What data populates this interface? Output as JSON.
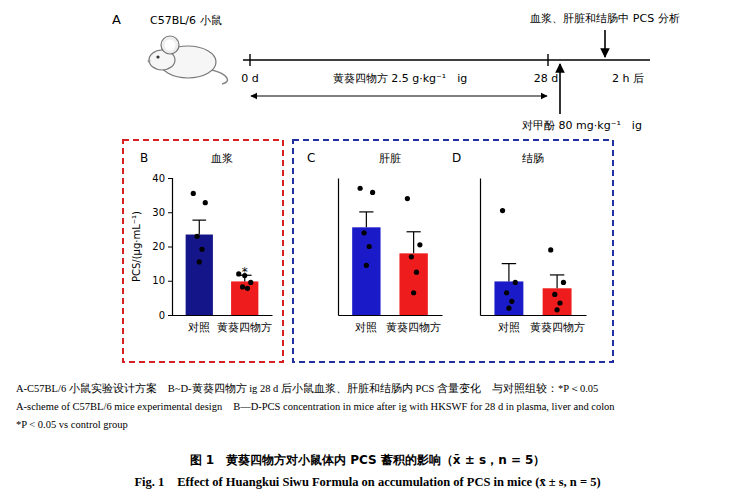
{
  "scheme": {
    "panel": "A",
    "subject": "C57BL/6 小鼠",
    "start": "0 d",
    "treatment": "黄葵四物方 2.5 g·kg⁻¹　ig",
    "end": "28 d",
    "after": "2 h 后",
    "analysis": "血浆、肝脏和结肠中 PCS 分析",
    "challenge": "对甲酚 80 mg·kg⁻¹　ig"
  },
  "chart_data": [
    {
      "type": "bar",
      "panel": "B",
      "title": "血浆",
      "y_label": "PCS/(μg·mL⁻¹)",
      "categories": [
        "对照",
        "黄葵四物方"
      ],
      "values": [
        23.5,
        9.8
      ],
      "errors": [
        4.2,
        1.8
      ],
      "points": [
        [
          35.5,
          32.8,
          23.0,
          19.2,
          15.5
        ],
        [
          12.0,
          9.5,
          8.2,
          7.8,
          11.5
        ]
      ],
      "colors": [
        "#15158a",
        "#ee1c1c"
      ],
      "ylim": [
        0,
        40
      ],
      "yticks": [
        0,
        10,
        20,
        30,
        40
      ],
      "annotations": [
        {
          "text": "*",
          "index": 1
        }
      ]
    },
    {
      "type": "bar",
      "panel": "C",
      "title": "肝脏",
      "categories": [
        "对照",
        "黄葵四物方"
      ],
      "values": [
        25.6,
        18.0
      ],
      "errors": [
        4.5,
        6.3
      ],
      "points": [
        [
          37.0,
          35.8,
          24.0,
          20.0,
          14.5
        ],
        [
          34.0,
          20.5,
          17.0,
          12.5,
          6.5
        ]
      ],
      "colors": [
        "#1a1ac8",
        "#ee1c1c"
      ],
      "ylim": [
        0,
        40
      ],
      "tick_labels": false
    },
    {
      "type": "bar",
      "panel": "D",
      "title": "结肠",
      "categories": [
        "对照",
        "黄葵四物方"
      ],
      "values": [
        9.8,
        7.8
      ],
      "errors": [
        5.2,
        3.9
      ],
      "points": [
        [
          30.5,
          9.5,
          6.5,
          4.0,
          2.0
        ],
        [
          19.0,
          9.5,
          6.0,
          3.5,
          1.5
        ]
      ],
      "colors": [
        "#1a1ac8",
        "#ee1c1c"
      ],
      "ylim": [
        0,
        40
      ],
      "tick_labels": false
    }
  ],
  "caption": {
    "legend_zh": "A-C57BL/6 小鼠实验设计方案　B~D-黄葵四物方 ig 28 d 后小鼠血浆、肝脏和结肠内 PCS 含量变化　与对照组较：*P＜0.05",
    "legend_en": "A-scheme of C57BL/6 mice experimental design　B—D-PCS concentration in mice after ig with HKSWF for 28 d in plasma, liver and colon",
    "legend_en_note": "*P < 0.05 vs control group",
    "title_zh": "图 1　黄葵四物方对小鼠体内 PCS 蓄积的影响（x̄ ± s，n = 5）",
    "title_en": "Fig. 1　Effect of Huangkui Siwu Formula on accumulation of PCS in mice (x̄ ± s, n = 5)"
  }
}
